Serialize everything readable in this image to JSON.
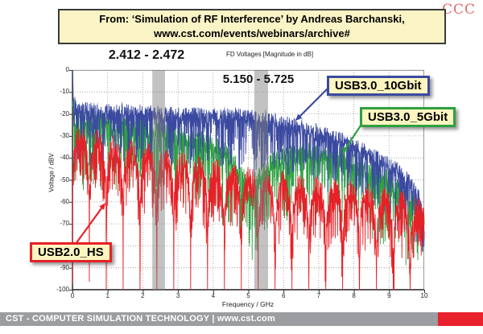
{
  "slide": {
    "corner_logo": "CCC",
    "corner_logo_color": "#e06a66",
    "source_box": {
      "line1": "From: ‘Simulation of RF Interference’ by Andreas Barchanski,",
      "line2": "www.cst.com/events/webinars/archive#"
    },
    "footer": {
      "text": "CST - COMPUTER SIMULATION TECHNOLOGY | www.cst.com",
      "bar_color": "#9b9da0",
      "accent_color": "#e8212d"
    }
  },
  "chart_data": {
    "type": "line",
    "title": "FD Voltages [Magnitude in dB]",
    "xlabel": "Frequency / GHz",
    "ylabel": "Voltage / dBV",
    "xlim": [
      0,
      10
    ],
    "ylim": [
      -100,
      0
    ],
    "x_ticks": [
      0,
      1,
      2,
      3,
      4,
      5,
      6,
      7,
      8,
      9,
      10
    ],
    "y_ticks": [
      0,
      -10,
      -20,
      -30,
      -40,
      -50,
      -60,
      -70,
      -80,
      -90,
      -100
    ],
    "grid": "dotted",
    "highlight_bands": [
      {
        "label": "2.412 - 2.472",
        "x_from": 2.27,
        "x_to": 2.63
      },
      {
        "label": "5.150 - 5.725",
        "x_from": 5.17,
        "x_to": 5.56
      }
    ],
    "series": [
      {
        "name": "USB3.0_5Gbit",
        "color": "#2fa042",
        "envelope_dbv_vs_ghz": [
          [
            0,
            -12
          ],
          [
            0.05,
            -22
          ],
          [
            1,
            -23
          ],
          [
            2,
            -25
          ],
          [
            3,
            -29
          ],
          [
            4,
            -34
          ],
          [
            4.5,
            -39
          ],
          [
            4.9,
            -50
          ],
          [
            5.05,
            -58
          ],
          [
            5.2,
            -50
          ],
          [
            5.6,
            -42
          ],
          [
            6,
            -39
          ],
          [
            6.8,
            -37
          ],
          [
            7.5,
            -39
          ],
          [
            8,
            -42
          ],
          [
            8.8,
            -48
          ],
          [
            9.4,
            -55
          ],
          [
            9.8,
            -62
          ],
          [
            10,
            -70
          ]
        ],
        "noise_db": 4.5,
        "dip_depth_db": 30,
        "dip_pow": 5,
        "seed": 7
      },
      {
        "name": "USB3.0_10Gbit",
        "color": "#3b4aa0",
        "envelope_dbv_vs_ghz": [
          [
            0,
            0
          ],
          [
            0.03,
            -14
          ],
          [
            0.2,
            -18
          ],
          [
            3,
            -20
          ],
          [
            5,
            -21
          ],
          [
            6,
            -24
          ],
          [
            7,
            -28
          ],
          [
            8,
            -34
          ],
          [
            8.7,
            -40
          ],
          [
            9.3,
            -46
          ],
          [
            9.7,
            -53
          ],
          [
            9.9,
            -60
          ],
          [
            10,
            -72
          ]
        ],
        "noise_db": 3.5,
        "dip_depth_db": 26,
        "dip_pow": 5,
        "seed": 3
      },
      {
        "name": "USB2.0_HS",
        "color": "#e62127",
        "lobe_period_ghz": 0.48,
        "envelope_dbv_vs_ghz": [
          [
            0,
            -26
          ],
          [
            0.24,
            -30
          ],
          [
            1,
            -33
          ],
          [
            2,
            -37
          ],
          [
            3,
            -41
          ],
          [
            4,
            -45
          ],
          [
            5,
            -48
          ],
          [
            6,
            -51
          ],
          [
            7,
            -53
          ],
          [
            8,
            -55
          ],
          [
            9,
            -58
          ],
          [
            10,
            -62
          ]
        ],
        "noise_db": 5,
        "dip_depth_db": 22,
        "dip_pow": 4,
        "seed": 11
      }
    ]
  }
}
